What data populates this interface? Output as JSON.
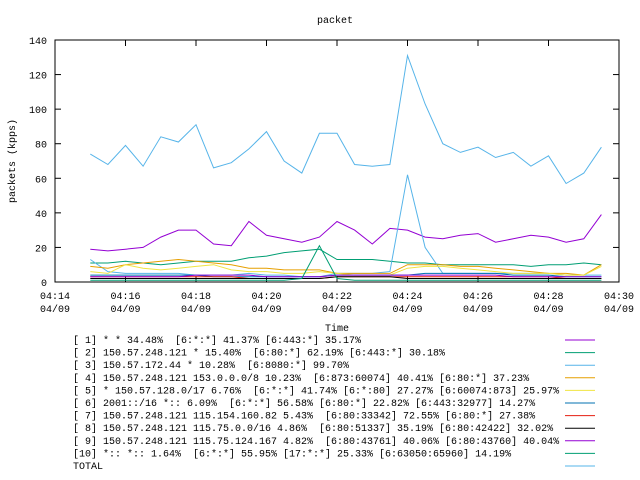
{
  "chart_data": {
    "type": "line",
    "title": "packet",
    "x_label": "Time",
    "y_label": "packets (kpps)",
    "xlim": [
      14,
      30
    ],
    "xticks": [
      {
        "value": 14,
        "label": "04:14\n04/09"
      },
      {
        "value": 16,
        "label": "04:16\n04/09"
      },
      {
        "value": 18,
        "label": "04:18\n04/09"
      },
      {
        "value": 20,
        "label": "04:20\n04/09"
      },
      {
        "value": 22,
        "label": "04:22\n04/09"
      },
      {
        "value": 24,
        "label": "04:24\n04/09"
      },
      {
        "value": 26,
        "label": "04:26\n04/09"
      },
      {
        "value": 28,
        "label": "04:28\n04/09"
      },
      {
        "value": 30,
        "label": "04:30\n04/09"
      }
    ],
    "ylim": [
      0,
      140
    ],
    "yticks": [
      0,
      20,
      40,
      60,
      80,
      100,
      120,
      140
    ],
    "x": [
      15,
      15.5,
      16,
      16.5,
      17,
      17.5,
      18,
      18.5,
      19,
      19.5,
      20,
      20.5,
      21,
      21.5,
      22,
      22.5,
      23,
      23.5,
      24,
      24.5,
      25,
      25.5,
      26,
      26.5,
      27,
      27.5,
      28,
      28.5,
      29,
      29.5
    ],
    "series": [
      {
        "name": "[ 1] * * 34.48%  [6:*:*] 41.37% [6:443:*] 35.17%",
        "color": "#9400d3",
        "values": [
          19,
          18,
          19,
          20,
          26,
          30,
          30,
          22,
          21,
          35,
          27,
          25,
          23,
          26,
          35,
          30,
          22,
          31,
          30,
          26,
          25,
          27,
          28,
          23,
          25,
          27,
          26,
          23,
          25,
          39
        ]
      },
      {
        "name": "[ 2] 150.57.248.121 * 15.40%  [6:80:*] 62.19% [6:443:*] 30.18%",
        "color": "#009e73",
        "values": [
          11,
          11,
          12,
          11,
          10,
          11,
          12,
          12,
          12,
          14,
          15,
          17,
          18,
          19,
          13,
          13,
          13,
          12,
          11,
          11,
          10,
          10,
          10,
          10,
          10,
          9,
          10,
          10,
          11,
          10
        ]
      },
      {
        "name": "[ 3] 150.57.172.44 * 10.28%  [6:8080:*] 99.70%",
        "color": "#56b4e9",
        "values": [
          13,
          6,
          5,
          5,
          5,
          5,
          4,
          4,
          4,
          5,
          4,
          4,
          3,
          3,
          5,
          5,
          5,
          6,
          62,
          20,
          5,
          5,
          5,
          5,
          5,
          5,
          5,
          4,
          4,
          4
        ]
      },
      {
        "name": "[ 4] 150.57.248.121 153.0.0.0/8 10.23%  [6:873:60074] 40.41% [6:80:*] 37.23%",
        "color": "#e69f00",
        "values": [
          9,
          8,
          10,
          11,
          12,
          13,
          12,
          11,
          10,
          8,
          8,
          7,
          7,
          7,
          5,
          5,
          5,
          5,
          10,
          10,
          10,
          9,
          9,
          8,
          7,
          6,
          5,
          5,
          4,
          10
        ]
      },
      {
        "name": "[ 5] * 150.57.128.0/17 6.76%  [6:*:*] 41.74% [6:*:80] 27.27% [6:60074:873] 25.97%",
        "color": "#f0e442",
        "values": [
          6,
          5,
          10,
          8,
          7,
          8,
          9,
          10,
          7,
          6,
          6,
          5,
          5,
          6,
          5,
          4,
          4,
          4,
          8,
          9,
          9,
          8,
          7,
          6,
          5,
          5,
          5,
          4,
          4,
          9
        ]
      },
      {
        "name": "[ 6] 2001::/16 *:: 6.09%  [6:*:*] 56.58% [6:80:*] 22.82% [6:443:32977] 14.27%",
        "color": "#0072b2",
        "values": [
          4,
          4,
          4,
          4,
          4,
          4,
          4,
          3,
          3,
          3,
          3,
          3,
          3,
          3,
          4,
          4,
          4,
          4,
          4,
          5,
          5,
          5,
          5,
          5,
          4,
          4,
          4,
          3,
          3,
          3
        ]
      },
      {
        "name": "[ 7] 150.57.248.121 115.154.160.82 5.43%  [6:80:33342] 72.55% [6:80:*] 27.38%",
        "color": "#e51e10",
        "values": [
          3,
          3,
          3,
          3,
          3,
          3,
          3,
          3,
          3,
          2,
          2,
          2,
          2,
          2,
          3,
          3,
          3,
          3,
          3,
          3,
          3,
          3,
          3,
          3,
          3,
          3,
          3,
          2,
          2,
          2
        ]
      },
      {
        "name": "[ 8] 150.57.248.121 115.75.0.0/16 4.86%  [6:80:51337] 35.19% [6:80:42422] 32.02%",
        "color": "#000000",
        "values": [
          2,
          2,
          2,
          2,
          2,
          2,
          2,
          2,
          2,
          2,
          2,
          2,
          2,
          2,
          3,
          3,
          3,
          3,
          2,
          2,
          2,
          2,
          2,
          2,
          2,
          2,
          2,
          2,
          2,
          2
        ]
      },
      {
        "name": "[ 9] 150.57.248.121 115.75.124.167 4.82%  [6:80:43761] 40.06% [6:80:43760] 40.04%",
        "color": "#9400d3",
        "values": [
          3,
          3,
          3,
          3,
          3,
          3,
          4,
          4,
          4,
          4,
          3,
          3,
          3,
          3,
          4,
          4,
          4,
          4,
          4,
          4,
          4,
          4,
          4,
          4,
          3,
          3,
          3,
          3,
          3,
          3
        ]
      },
      {
        "name": "[10] *:: *:: 1.64%  [6:*:*] 55.95% [17:*:*] 25.33% [6:63050:65960] 14.19%",
        "color": "#009e73",
        "values": [
          1,
          1,
          1,
          1,
          1,
          1,
          1,
          1,
          1,
          1,
          1,
          1,
          2,
          21,
          2,
          1,
          1,
          1,
          1,
          1,
          1,
          1,
          1,
          1,
          1,
          1,
          1,
          1,
          1,
          1
        ]
      },
      {
        "name": "TOTAL",
        "color": "#56b4e9",
        "values": [
          74,
          68,
          79,
          67,
          84,
          81,
          91,
          66,
          69,
          77,
          87,
          70,
          63,
          86,
          86,
          68,
          67,
          68,
          131,
          103,
          80,
          75,
          78,
          72,
          75,
          67,
          73,
          57,
          63,
          78
        ]
      }
    ]
  }
}
